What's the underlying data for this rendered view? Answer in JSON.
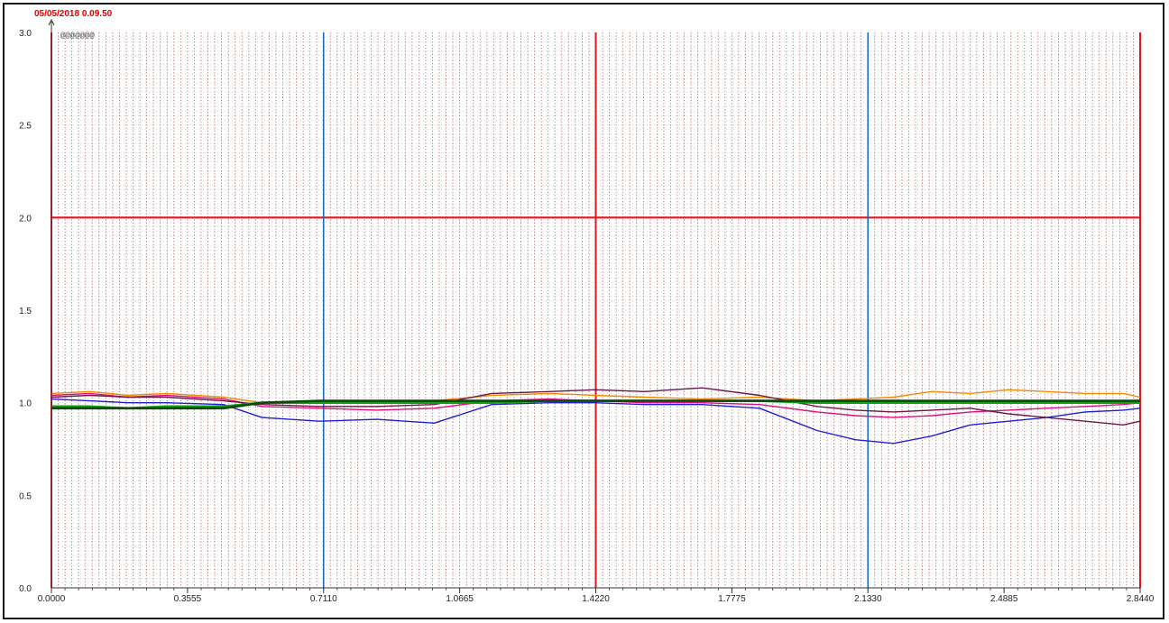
{
  "header": {
    "timestamp": "05/05/2018 0.09.50",
    "legend_marker": "@@@@@@@"
  },
  "colors": {
    "limit_line": "#e8141b",
    "cursor_line": "#1a6fc4",
    "grid_dots": "#8b1a1a",
    "axis": "#333333"
  },
  "chart_data": {
    "type": "line",
    "title": "",
    "xlabel": "",
    "ylabel": "",
    "xlim": [
      0,
      2.844
    ],
    "ylim": [
      0,
      3.0
    ],
    "x_ticks": [
      0.0,
      0.3555,
      0.711,
      1.0665,
      1.422,
      1.7775,
      2.133,
      2.4885,
      2.844
    ],
    "x_tick_labels": [
      "0.0000",
      "0.3555",
      "0.7110",
      "1.0665",
      "1.4220",
      "1.7775",
      "2.1330",
      "2.4885",
      "2.8440"
    ],
    "y_ticks": [
      0.0,
      0.5,
      1.0,
      1.5,
      2.0,
      2.5,
      3.0
    ],
    "y_tick_labels": [
      "0.0",
      "0.5",
      "1.0",
      "1.5",
      "2.0",
      "2.5",
      "3.0"
    ],
    "grid": true,
    "reference_lines": {
      "horizontal_red": [
        2.0
      ],
      "vertical_red": [
        0.0,
        1.422,
        2.844
      ],
      "vertical_blue": [
        0.711,
        2.133
      ]
    },
    "series": [
      {
        "color": "#f08c00",
        "x": [
          0.0,
          0.1,
          0.2,
          0.3,
          0.45,
          0.55,
          0.7,
          0.85,
          1.0,
          1.15,
          1.3,
          1.42,
          1.55,
          1.7,
          1.85,
          2.0,
          2.1,
          2.2,
          2.3,
          2.4,
          2.5,
          2.6,
          2.7,
          2.8,
          2.844
        ],
        "y": [
          1.05,
          1.06,
          1.04,
          1.05,
          1.03,
          1.0,
          1.0,
          1.0,
          1.01,
          1.04,
          1.05,
          1.04,
          1.03,
          1.02,
          1.03,
          1.01,
          1.02,
          1.03,
          1.06,
          1.05,
          1.07,
          1.06,
          1.05,
          1.05,
          1.03
        ]
      },
      {
        "color": "#e01080",
        "x": [
          0.0,
          0.1,
          0.2,
          0.3,
          0.45,
          0.55,
          0.7,
          0.85,
          1.0,
          1.15,
          1.3,
          1.42,
          1.55,
          1.7,
          1.85,
          2.0,
          2.1,
          2.2,
          2.3,
          2.4,
          2.5,
          2.6,
          2.7,
          2.8,
          2.844
        ],
        "y": [
          1.04,
          1.05,
          1.03,
          1.04,
          1.02,
          0.98,
          0.97,
          0.96,
          0.97,
          1.01,
          1.02,
          1.01,
          1.0,
          1.0,
          0.99,
          0.95,
          0.93,
          0.92,
          0.93,
          0.95,
          0.96,
          0.97,
          0.98,
          0.99,
          1.0
        ]
      },
      {
        "color": "#2020d0",
        "x": [
          0.0,
          0.1,
          0.2,
          0.3,
          0.45,
          0.55,
          0.7,
          0.85,
          1.0,
          1.15,
          1.3,
          1.42,
          1.55,
          1.7,
          1.85,
          2.0,
          2.1,
          2.2,
          2.3,
          2.4,
          2.5,
          2.6,
          2.7,
          2.8,
          2.844
        ],
        "y": [
          1.02,
          1.01,
          1.0,
          1.0,
          0.99,
          0.92,
          0.9,
          0.91,
          0.89,
          0.99,
          1.0,
          1.0,
          0.99,
          0.99,
          0.97,
          0.85,
          0.8,
          0.78,
          0.82,
          0.88,
          0.9,
          0.92,
          0.95,
          0.96,
          0.97
        ]
      },
      {
        "color": "#6a1a4a",
        "x": [
          0.0,
          0.1,
          0.2,
          0.3,
          0.45,
          0.55,
          0.7,
          0.85,
          1.0,
          1.15,
          1.3,
          1.42,
          1.55,
          1.7,
          1.85,
          2.0,
          2.1,
          2.2,
          2.3,
          2.4,
          2.5,
          2.6,
          2.7,
          2.8,
          2.844
        ],
        "y": [
          1.03,
          1.04,
          1.03,
          1.03,
          1.01,
          0.99,
          0.98,
          0.98,
          0.99,
          1.05,
          1.06,
          1.07,
          1.06,
          1.08,
          1.04,
          0.98,
          0.96,
          0.95,
          0.96,
          0.97,
          0.94,
          0.92,
          0.9,
          0.88,
          0.9
        ]
      },
      {
        "color": "#12a012",
        "x": [
          0.0,
          0.1,
          0.2,
          0.3,
          0.45,
          0.55,
          0.7,
          0.85,
          1.0,
          1.15,
          1.3,
          1.42,
          1.55,
          1.7,
          1.85,
          2.0,
          2.1,
          2.2,
          2.3,
          2.4,
          2.5,
          2.6,
          2.7,
          2.8,
          2.844
        ],
        "y": [
          0.98,
          0.98,
          0.97,
          0.98,
          0.98,
          1.0,
          1.0,
          1.0,
          1.0,
          1.0,
          1.01,
          1.01,
          1.01,
          1.01,
          1.01,
          1.0,
          1.0,
          1.0,
          1.0,
          1.0,
          1.0,
          1.0,
          1.0,
          1.0,
          1.0
        ]
      },
      {
        "color": "#0a4a0a",
        "x": [
          0.0,
          0.1,
          0.2,
          0.3,
          0.45,
          0.55,
          0.7,
          0.85,
          1.0,
          1.15,
          1.3,
          1.42,
          1.55,
          1.7,
          1.85,
          2.0,
          2.1,
          2.2,
          2.3,
          2.4,
          2.5,
          2.6,
          2.7,
          2.8,
          2.844
        ],
        "y": [
          0.97,
          0.97,
          0.97,
          0.97,
          0.97,
          1.0,
          1.01,
          1.01,
          1.01,
          1.01,
          1.01,
          1.01,
          1.01,
          1.01,
          1.01,
          1.01,
          1.01,
          1.01,
          1.01,
          1.01,
          1.01,
          1.01,
          1.01,
          1.01,
          1.01
        ]
      }
    ]
  }
}
